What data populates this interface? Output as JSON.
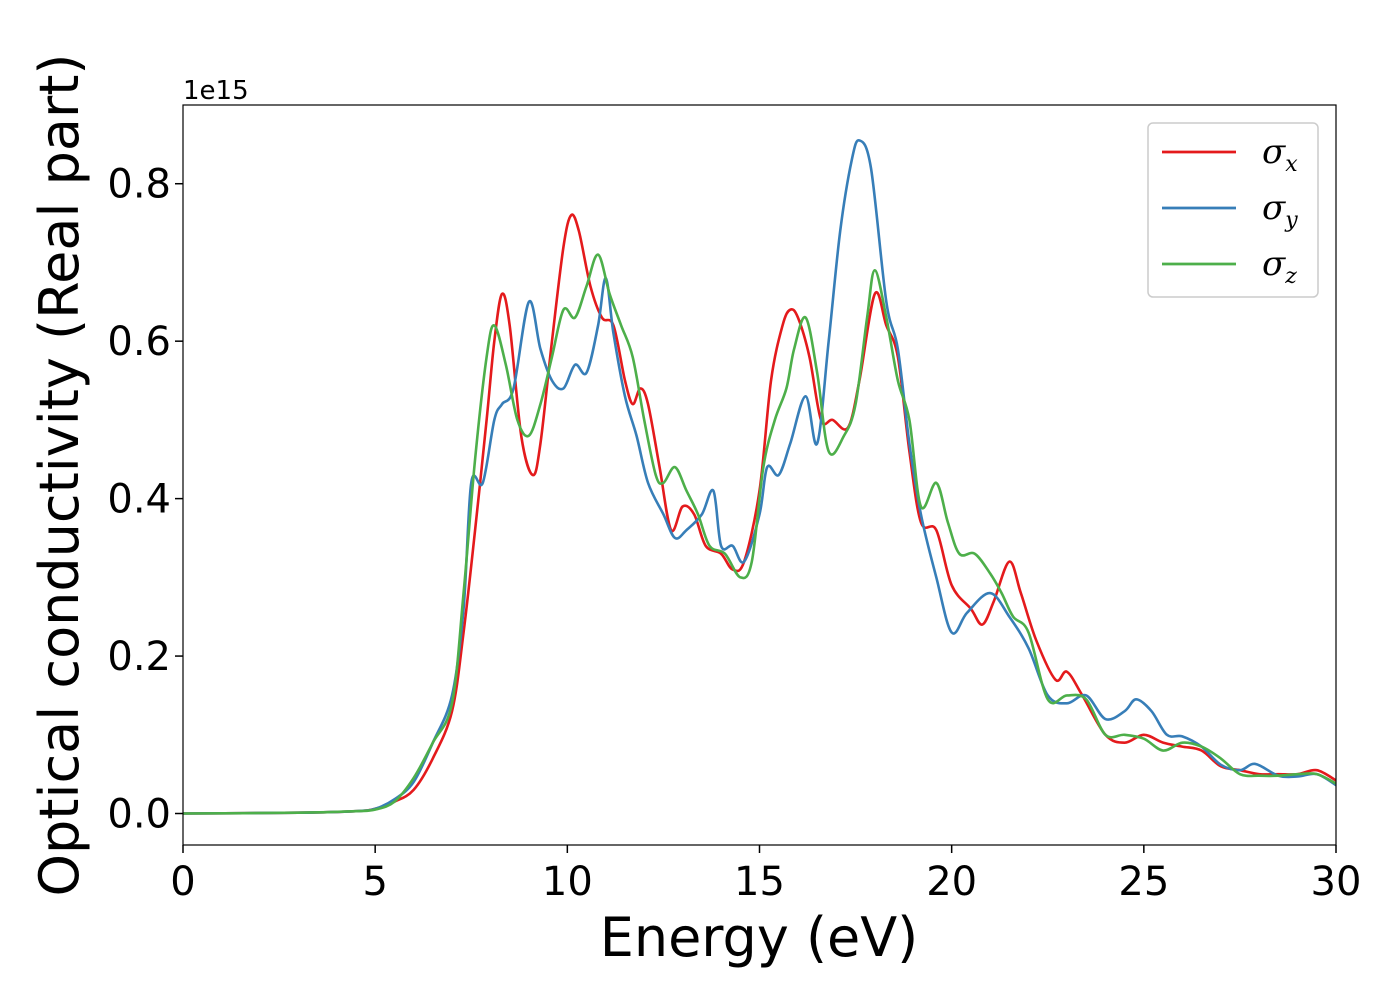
{
  "chart_data": {
    "type": "line",
    "xlabel": "Energy (eV)",
    "ylabel": "Optical conductivity (Real part)",
    "offset_text": "1e15",
    "xlim": [
      0,
      30
    ],
    "ylim": [
      -0.04,
      0.9
    ],
    "y_scale_factor": 1000000000000000.0,
    "xticks": [
      0,
      5,
      10,
      15,
      20,
      25,
      30
    ],
    "xtick_labels": [
      "0",
      "5",
      "10",
      "15",
      "20",
      "25",
      "30"
    ],
    "yticks": [
      0.0,
      0.2,
      0.4,
      0.6,
      0.8
    ],
    "ytick_labels": [
      "0.0",
      "0.2",
      "0.4",
      "0.6",
      "0.8"
    ],
    "grid": false,
    "legend_position": "top-right",
    "series": [
      {
        "name": "σ",
        "subscript": "x",
        "color": "#e41a1c",
        "points": [
          [
            0,
            0
          ],
          [
            3,
            0.001
          ],
          [
            4.5,
            0.003
          ],
          [
            5,
            0.006
          ],
          [
            5.5,
            0.015
          ],
          [
            6,
            0.03
          ],
          [
            6.5,
            0.07
          ],
          [
            7,
            0.13
          ],
          [
            7.3,
            0.23
          ],
          [
            7.6,
            0.36
          ],
          [
            7.9,
            0.5
          ],
          [
            8.1,
            0.6
          ],
          [
            8.3,
            0.66
          ],
          [
            8.5,
            0.62
          ],
          [
            8.8,
            0.48
          ],
          [
            9.1,
            0.43
          ],
          [
            9.3,
            0.47
          ],
          [
            9.6,
            0.6
          ],
          [
            9.9,
            0.72
          ],
          [
            10.1,
            0.76
          ],
          [
            10.3,
            0.74
          ],
          [
            10.6,
            0.67
          ],
          [
            10.9,
            0.63
          ],
          [
            11.2,
            0.62
          ],
          [
            11.5,
            0.55
          ],
          [
            11.7,
            0.52
          ],
          [
            11.9,
            0.54
          ],
          [
            12.1,
            0.52
          ],
          [
            12.4,
            0.44
          ],
          [
            12.7,
            0.36
          ],
          [
            13,
            0.39
          ],
          [
            13.3,
            0.38
          ],
          [
            13.6,
            0.34
          ],
          [
            14,
            0.33
          ],
          [
            14.3,
            0.31
          ],
          [
            14.6,
            0.32
          ],
          [
            15,
            0.41
          ],
          [
            15.3,
            0.55
          ],
          [
            15.6,
            0.62
          ],
          [
            15.8,
            0.64
          ],
          [
            16,
            0.63
          ],
          [
            16.3,
            0.58
          ],
          [
            16.6,
            0.5
          ],
          [
            16.9,
            0.5
          ],
          [
            17.3,
            0.49
          ],
          [
            17.6,
            0.55
          ],
          [
            18,
            0.66
          ],
          [
            18.3,
            0.62
          ],
          [
            18.6,
            0.58
          ],
          [
            18.9,
            0.46
          ],
          [
            19.2,
            0.37
          ],
          [
            19.6,
            0.36
          ],
          [
            20,
            0.29
          ],
          [
            20.5,
            0.26
          ],
          [
            20.8,
            0.24
          ],
          [
            21.1,
            0.27
          ],
          [
            21.5,
            0.32
          ],
          [
            21.8,
            0.28
          ],
          [
            22.2,
            0.22
          ],
          [
            22.7,
            0.17
          ],
          [
            23,
            0.18
          ],
          [
            23.4,
            0.15
          ],
          [
            24,
            0.1
          ],
          [
            24.5,
            0.09
          ],
          [
            25,
            0.1
          ],
          [
            25.5,
            0.09
          ],
          [
            26,
            0.085
          ],
          [
            26.5,
            0.08
          ],
          [
            27,
            0.06
          ],
          [
            27.5,
            0.055
          ],
          [
            28,
            0.05
          ],
          [
            28.5,
            0.05
          ],
          [
            29,
            0.05
          ],
          [
            29.5,
            0.055
          ],
          [
            30,
            0.042
          ]
        ]
      },
      {
        "name": "σ",
        "subscript": "y",
        "color": "#377eb8",
        "points": [
          [
            0,
            0
          ],
          [
            3,
            0.001
          ],
          [
            4.5,
            0.003
          ],
          [
            5,
            0.006
          ],
          [
            5.5,
            0.018
          ],
          [
            6,
            0.04
          ],
          [
            6.5,
            0.09
          ],
          [
            7,
            0.15
          ],
          [
            7.3,
            0.26
          ],
          [
            7.5,
            0.42
          ],
          [
            7.8,
            0.42
          ],
          [
            8.1,
            0.5
          ],
          [
            8.3,
            0.52
          ],
          [
            8.6,
            0.54
          ],
          [
            9,
            0.65
          ],
          [
            9.3,
            0.59
          ],
          [
            9.6,
            0.55
          ],
          [
            9.9,
            0.54
          ],
          [
            10.2,
            0.57
          ],
          [
            10.5,
            0.56
          ],
          [
            10.8,
            0.62
          ],
          [
            11,
            0.68
          ],
          [
            11.2,
            0.61
          ],
          [
            11.5,
            0.53
          ],
          [
            11.8,
            0.48
          ],
          [
            12.1,
            0.42
          ],
          [
            12.5,
            0.38
          ],
          [
            12.8,
            0.35
          ],
          [
            13.1,
            0.36
          ],
          [
            13.5,
            0.38
          ],
          [
            13.8,
            0.41
          ],
          [
            14,
            0.34
          ],
          [
            14.3,
            0.34
          ],
          [
            14.6,
            0.32
          ],
          [
            15,
            0.38
          ],
          [
            15.2,
            0.44
          ],
          [
            15.5,
            0.43
          ],
          [
            15.8,
            0.47
          ],
          [
            16.2,
            0.53
          ],
          [
            16.5,
            0.47
          ],
          [
            16.8,
            0.6
          ],
          [
            17.1,
            0.74
          ],
          [
            17.4,
            0.83
          ],
          [
            17.6,
            0.855
          ],
          [
            17.9,
            0.82
          ],
          [
            18.3,
            0.65
          ],
          [
            18.6,
            0.59
          ],
          [
            18.9,
            0.47
          ],
          [
            19.2,
            0.38
          ],
          [
            19.6,
            0.3
          ],
          [
            20,
            0.23
          ],
          [
            20.4,
            0.255
          ],
          [
            21,
            0.28
          ],
          [
            21.5,
            0.25
          ],
          [
            22,
            0.21
          ],
          [
            22.5,
            0.15
          ],
          [
            23,
            0.14
          ],
          [
            23.5,
            0.15
          ],
          [
            24,
            0.12
          ],
          [
            24.5,
            0.13
          ],
          [
            24.8,
            0.145
          ],
          [
            25.2,
            0.13
          ],
          [
            25.6,
            0.1
          ],
          [
            26,
            0.098
          ],
          [
            26.5,
            0.085
          ],
          [
            27,
            0.062
          ],
          [
            27.5,
            0.055
          ],
          [
            27.9,
            0.063
          ],
          [
            28.5,
            0.048
          ],
          [
            29,
            0.047
          ],
          [
            29.5,
            0.05
          ],
          [
            30,
            0.036
          ]
        ]
      },
      {
        "name": "σ",
        "subscript": "z",
        "color": "#4daf4a",
        "points": [
          [
            0,
            0
          ],
          [
            3,
            0.001
          ],
          [
            4.5,
            0.003
          ],
          [
            5,
            0.005
          ],
          [
            5.5,
            0.015
          ],
          [
            6,
            0.045
          ],
          [
            6.5,
            0.09
          ],
          [
            7,
            0.14
          ],
          [
            7.3,
            0.28
          ],
          [
            7.6,
            0.45
          ],
          [
            7.9,
            0.58
          ],
          [
            8.1,
            0.62
          ],
          [
            8.4,
            0.57
          ],
          [
            8.7,
            0.5
          ],
          [
            9,
            0.48
          ],
          [
            9.3,
            0.52
          ],
          [
            9.6,
            0.58
          ],
          [
            9.9,
            0.64
          ],
          [
            10.2,
            0.63
          ],
          [
            10.5,
            0.67
          ],
          [
            10.8,
            0.71
          ],
          [
            11.1,
            0.66
          ],
          [
            11.4,
            0.62
          ],
          [
            11.7,
            0.58
          ],
          [
            12,
            0.5
          ],
          [
            12.3,
            0.43
          ],
          [
            12.5,
            0.42
          ],
          [
            12.8,
            0.44
          ],
          [
            13.1,
            0.41
          ],
          [
            13.4,
            0.38
          ],
          [
            13.7,
            0.34
          ],
          [
            14.1,
            0.33
          ],
          [
            14.5,
            0.3
          ],
          [
            14.8,
            0.32
          ],
          [
            15.1,
            0.44
          ],
          [
            15.4,
            0.5
          ],
          [
            15.7,
            0.54
          ],
          [
            15.9,
            0.59
          ],
          [
            16.2,
            0.63
          ],
          [
            16.5,
            0.56
          ],
          [
            16.8,
            0.46
          ],
          [
            17.2,
            0.48
          ],
          [
            17.5,
            0.52
          ],
          [
            17.8,
            0.63
          ],
          [
            18,
            0.69
          ],
          [
            18.3,
            0.63
          ],
          [
            18.6,
            0.55
          ],
          [
            18.9,
            0.5
          ],
          [
            19.2,
            0.39
          ],
          [
            19.6,
            0.42
          ],
          [
            19.9,
            0.37
          ],
          [
            20.2,
            0.33
          ],
          [
            20.6,
            0.33
          ],
          [
            21,
            0.305
          ],
          [
            21.3,
            0.28
          ],
          [
            21.6,
            0.25
          ],
          [
            22,
            0.23
          ],
          [
            22.5,
            0.145
          ],
          [
            23,
            0.15
          ],
          [
            23.5,
            0.145
          ],
          [
            24,
            0.1
          ],
          [
            24.5,
            0.1
          ],
          [
            25,
            0.095
          ],
          [
            25.5,
            0.08
          ],
          [
            26,
            0.09
          ],
          [
            26.5,
            0.085
          ],
          [
            27,
            0.07
          ],
          [
            27.5,
            0.05
          ],
          [
            28,
            0.048
          ],
          [
            28.5,
            0.048
          ],
          [
            29,
            0.05
          ],
          [
            29.5,
            0.05
          ],
          [
            30,
            0.038
          ]
        ]
      }
    ]
  }
}
